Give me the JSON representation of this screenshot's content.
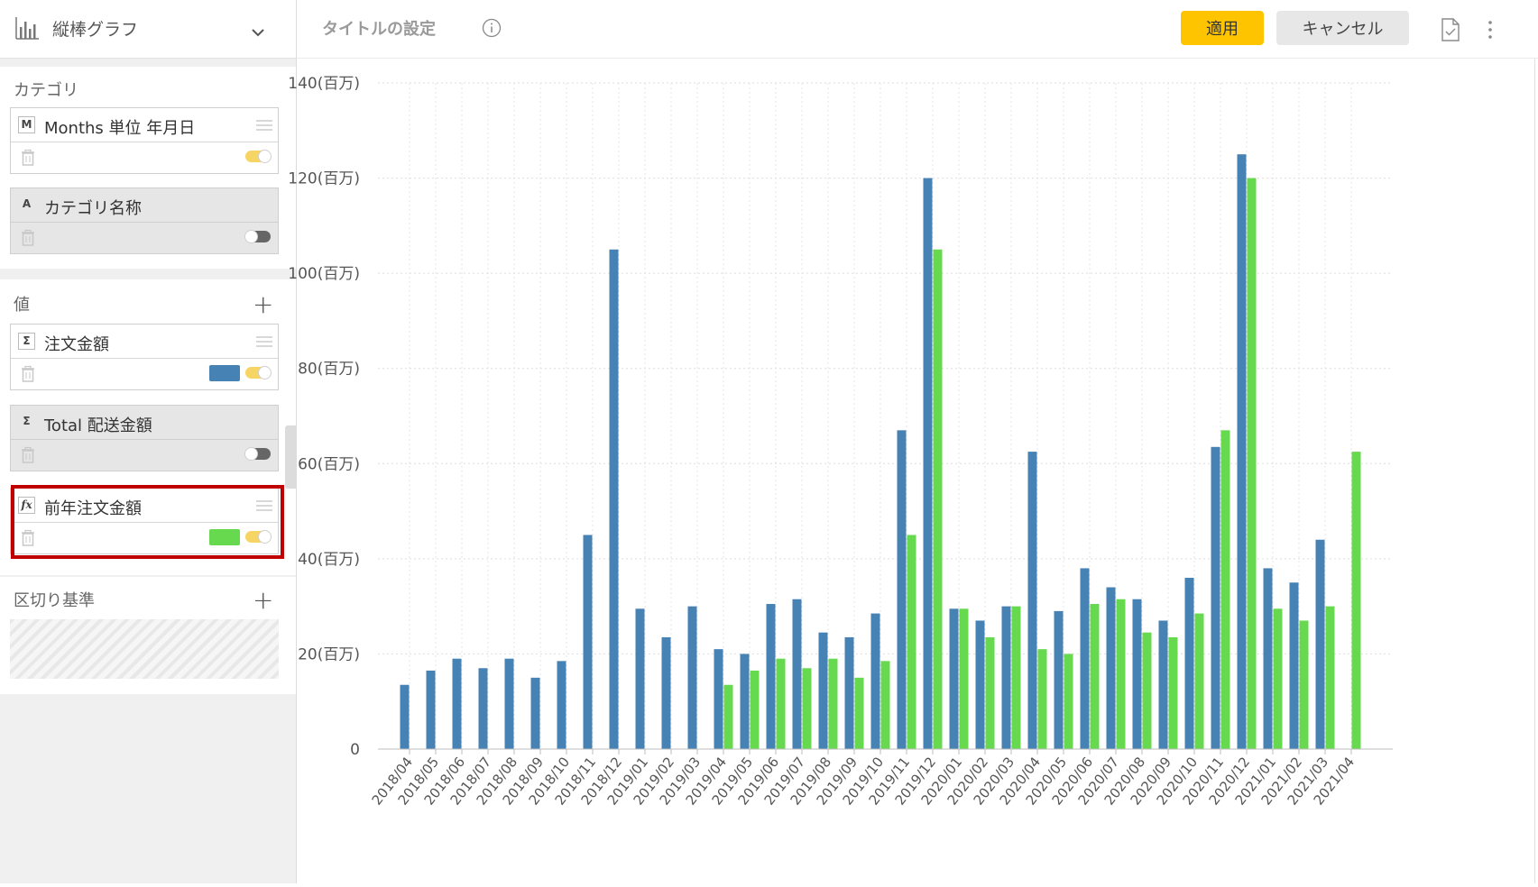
{
  "sidebar": {
    "chart_type": {
      "label": "縦棒グラフ",
      "icon": "bar-chart-icon"
    },
    "category_section": {
      "title": "カテゴリ",
      "fields": [
        {
          "badge": "M",
          "name": "Months 単位 年月日",
          "enabled": true
        },
        {
          "badge": "A",
          "name": "カテゴリ名称",
          "enabled": false
        }
      ]
    },
    "value_section": {
      "title": "値",
      "fields": [
        {
          "badge": "Σ",
          "name": "注文金額",
          "enabled": true,
          "color": "#4682b4"
        },
        {
          "badge": "Σ",
          "name": "Total 配送金額",
          "enabled": false
        },
        {
          "badge": "fx",
          "name": "前年注文金額",
          "enabled": true,
          "color": "#66d94f"
        }
      ]
    },
    "break_section": {
      "title": "区切り基準"
    }
  },
  "header": {
    "title_placeholder": "タイトルの設定",
    "apply_label": "適用",
    "cancel_label": "キャンセル"
  },
  "chart_data": {
    "type": "bar",
    "categories": [
      "2018/04",
      "2018/05",
      "2018/06",
      "2018/07",
      "2018/08",
      "2018/09",
      "2018/10",
      "2018/11",
      "2018/12",
      "2019/01",
      "2019/02",
      "2019/03",
      "2019/04",
      "2019/05",
      "2019/06",
      "2019/07",
      "2019/08",
      "2019/09",
      "2019/10",
      "2019/11",
      "2019/12",
      "2020/01",
      "2020/02",
      "2020/03",
      "2020/04",
      "2020/05",
      "2020/06",
      "2020/07",
      "2020/08",
      "2020/09",
      "2020/10",
      "2020/11",
      "2020/12",
      "2021/01",
      "2021/02",
      "2021/03",
      "2021/04"
    ],
    "series": [
      {
        "name": "注文金額",
        "color": "#4682b4",
        "values": [
          13.5,
          16.5,
          19,
          17,
          19,
          15,
          18.5,
          45,
          105,
          29.5,
          23.5,
          30,
          21,
          20,
          30.5,
          31.5,
          24.5,
          23.5,
          28.5,
          67,
          120,
          29.5,
          27,
          30,
          62.5,
          29,
          38,
          34,
          31.5,
          27,
          36,
          63.5,
          125,
          38,
          35,
          44,
          null
        ]
      },
      {
        "name": "前年注文金額",
        "color": "#66d94f",
        "values": [
          null,
          null,
          null,
          null,
          null,
          null,
          null,
          null,
          null,
          null,
          null,
          null,
          13.5,
          16.5,
          19,
          17,
          19,
          15,
          18.5,
          45,
          105,
          29.5,
          23.5,
          30,
          21,
          20,
          30.5,
          31.5,
          24.5,
          23.5,
          28.5,
          67,
          120,
          29.5,
          27,
          30,
          62.5
        ]
      }
    ],
    "ylim": [
      0,
      140
    ],
    "yticks": [
      0,
      20,
      40,
      60,
      80,
      100,
      120,
      140
    ],
    "ytick_labels": [
      "0",
      "20(百万)",
      "40(百万)",
      "60(百万)",
      "80(百万)",
      "100(百万)",
      "120(百万)",
      "140(百万)"
    ],
    "grid": true,
    "legend": "none"
  }
}
